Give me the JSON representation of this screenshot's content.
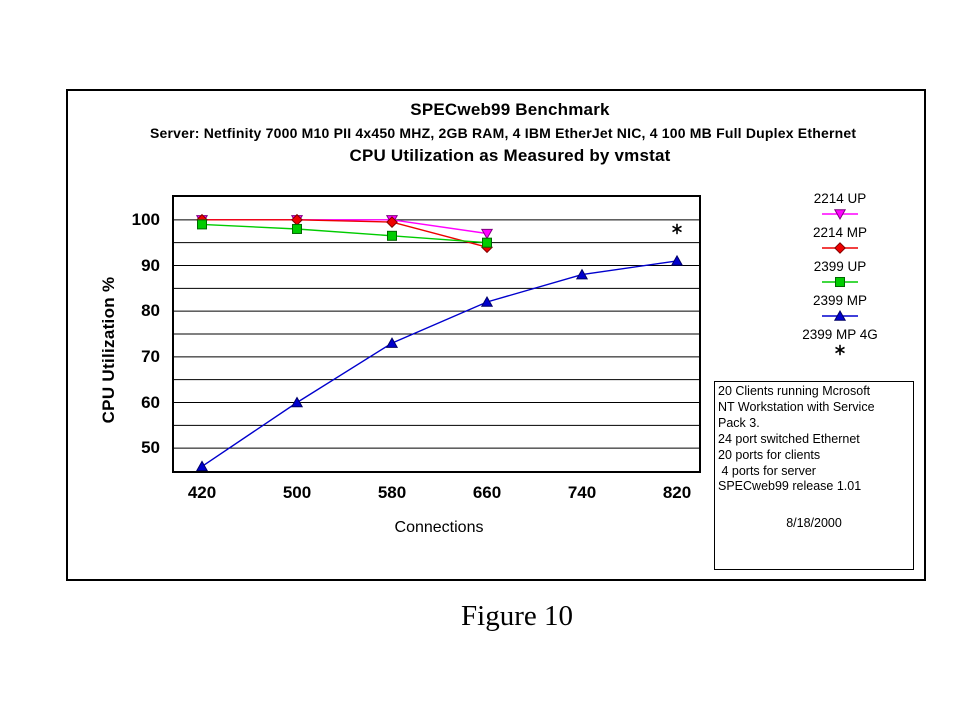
{
  "figure": {
    "caption": "Figure 10"
  },
  "chart_data": {
    "type": "line",
    "title": "SPECweb99 Benchmark",
    "subtitle": "Server: Netfinity 7000 M10 PII 4x450 MHZ, 2GB RAM, 4 IBM EtherJet NIC, 4 100 MB Full Duplex Ethernet",
    "heading": "CPU Utilization as Measured by vmstat",
    "xlabel": "Connections",
    "ylabel": "CPU Utilization %",
    "x": [
      420,
      500,
      580,
      660,
      740,
      820
    ],
    "xticklabels": [
      "420",
      "500",
      "580",
      "660",
      "740",
      "820"
    ],
    "yticks": [
      50,
      60,
      70,
      80,
      90,
      100
    ],
    "ylim": [
      45,
      105
    ],
    "gridline_step": 5,
    "grid": "horizontal",
    "legend_position": "right",
    "series": [
      {
        "name": "2214 UP",
        "marker": "triangle-down",
        "color": "#FF00FF",
        "edge": "#800080",
        "line": true,
        "x": [
          420,
          500,
          580,
          660
        ],
        "values": [
          100,
          100,
          100,
          97
        ]
      },
      {
        "name": "2214 MP",
        "marker": "diamond",
        "color": "#EE0000",
        "edge": "#800000",
        "line": true,
        "x": [
          420,
          500,
          580,
          660
        ],
        "values": [
          100,
          100,
          99.5,
          94
        ]
      },
      {
        "name": "2399 UP",
        "marker": "square",
        "color": "#00CC00",
        "edge": "#006600",
        "line": true,
        "x": [
          420,
          500,
          580,
          660
        ],
        "values": [
          99,
          98,
          96.5,
          95
        ]
      },
      {
        "name": "2399 MP",
        "marker": "triangle-up",
        "color": "#0000CD",
        "edge": "#000066",
        "line": true,
        "x": [
          420,
          500,
          580,
          660,
          740,
          820
        ],
        "values": [
          46,
          60,
          73,
          82,
          88,
          91
        ]
      },
      {
        "name": "2399 MP 4G",
        "marker": "asterisk",
        "color": "#000000",
        "edge": "#000000",
        "line": false,
        "x": [
          820
        ],
        "values": [
          98
        ]
      }
    ],
    "annotations": [
      {
        "text": "*",
        "x": 820,
        "y": 98
      }
    ]
  },
  "info_box": {
    "lines": [
      "20 Clients running Mcrosoft",
      "NT Workstation with Service",
      "Pack 3.",
      "24 port switched Ethernet",
      "20 ports for clients",
      " 4 ports for server",
      "SPECweb99 release 1.01"
    ],
    "date": "8/18/2000"
  },
  "colors": {
    "grid": "#000000",
    "plot_border": "#000000",
    "background": "#FFFFFF"
  }
}
